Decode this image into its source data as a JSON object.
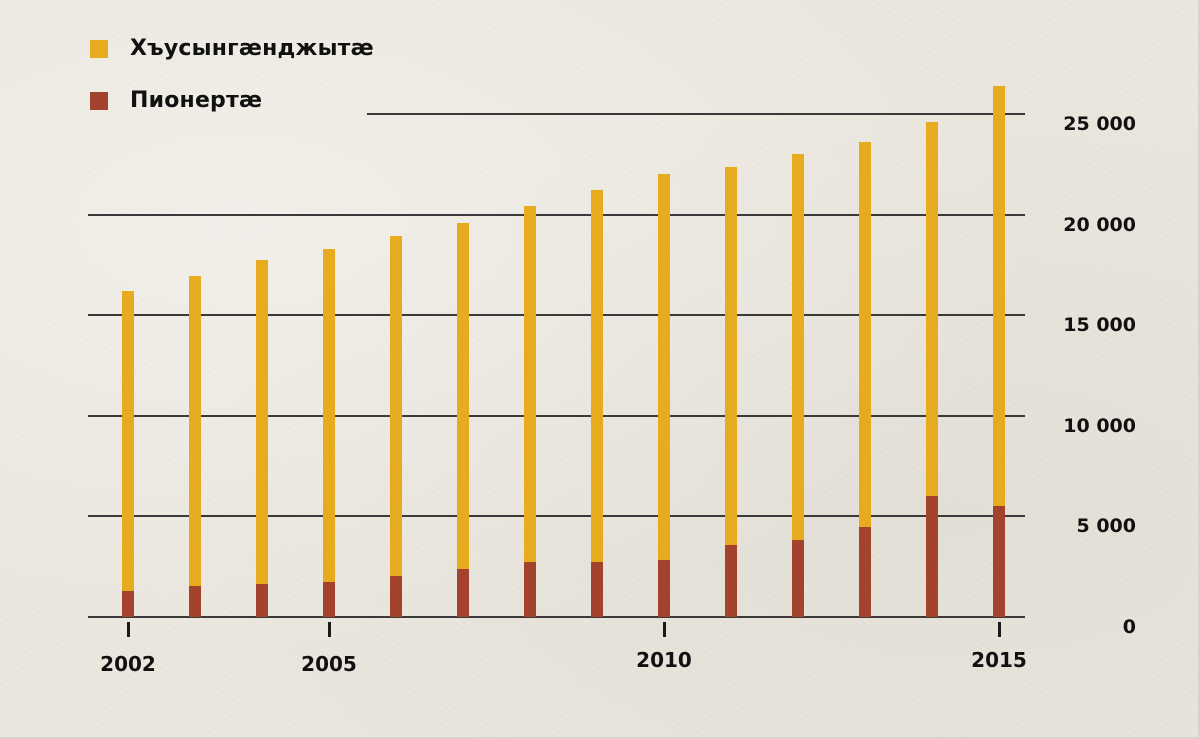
{
  "colors": {
    "background": "#ebe7de",
    "series_top": "#e6ab1e",
    "series_bottom": "#a3432e",
    "gridline": "#3a3a3a"
  },
  "legend": [
    {
      "label": "Хъусынгæнджытæ",
      "color": "#e6ab1e"
    },
    {
      "label": "Пионертæ",
      "color": "#a3432e"
    }
  ],
  "y_axis": {
    "ticks": [
      {
        "value": 0,
        "label": "0"
      },
      {
        "value": 5000,
        "label": "5 000"
      },
      {
        "value": 10000,
        "label": "10 000"
      },
      {
        "value": 15000,
        "label": "15 000"
      },
      {
        "value": 20000,
        "label": "20 000"
      },
      {
        "value": 25000,
        "label": "25 000"
      }
    ]
  },
  "x_axis": {
    "labeled_ticks": [
      {
        "year": 2002,
        "label": "2002"
      },
      {
        "year": 2005,
        "label": "2005"
      },
      {
        "year": 2010,
        "label": "2010"
      },
      {
        "year": 2015,
        "label": "2015"
      }
    ]
  },
  "chart_data": {
    "type": "bar",
    "stacked": false,
    "overlaid": true,
    "title": "",
    "xlabel": "",
    "ylabel": "",
    "categories": [
      2002,
      2003,
      2004,
      2005,
      2006,
      2007,
      2008,
      2009,
      2010,
      2011,
      2012,
      2013,
      2014,
      2015
    ],
    "series": [
      {
        "name": "Хъусынгæнджытæ",
        "color": "#e6ab1e",
        "values": [
          16200,
          16950,
          17750,
          18300,
          18950,
          19600,
          20450,
          21200,
          22000,
          22350,
          23000,
          23600,
          24600,
          26400
        ]
      },
      {
        "name": "Пионертæ",
        "color": "#a3432e",
        "values": [
          1300,
          1550,
          1650,
          1750,
          2050,
          2400,
          2750,
          2750,
          2850,
          3600,
          3850,
          4450,
          6000,
          5500
        ]
      }
    ],
    "ylim": [
      0,
      26500
    ],
    "yticks": [
      0,
      5000,
      10000,
      15000,
      20000,
      25000
    ],
    "xtick_labels": [
      "2002",
      "2005",
      "2010",
      "2015"
    ],
    "y_axis_position": "right",
    "grid": true,
    "legend_position": "top-left"
  }
}
